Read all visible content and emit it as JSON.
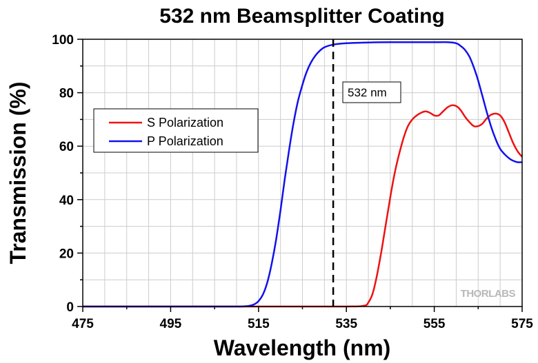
{
  "chart_data": {
    "type": "line",
    "title": "532 nm Beamsplitter Coating",
    "xlabel": "Wavelength (nm)",
    "ylabel": "Transmission (%)",
    "xlim": [
      475,
      575
    ],
    "ylim": [
      0,
      100
    ],
    "x_ticks": [
      475,
      495,
      515,
      535,
      555,
      575
    ],
    "x_tick_labels": [
      "475",
      "495",
      "515",
      "535",
      "555",
      "575"
    ],
    "y_ticks": [
      0,
      20,
      40,
      60,
      80,
      100
    ],
    "y_tick_labels": [
      "0",
      "20",
      "40",
      "60",
      "80",
      "100"
    ],
    "grid": true,
    "legend_position": "upper-left",
    "series": [
      {
        "name": "S Polarization",
        "color": "#ee1111",
        "x": [
          475,
          500,
          520,
          535,
          539,
          540,
          541,
          542,
          543,
          544,
          545,
          546,
          547,
          548,
          549,
          550,
          551,
          552,
          553,
          554,
          555,
          556,
          557,
          558,
          559,
          560,
          561,
          562,
          563,
          564,
          565,
          566,
          567,
          568,
          569,
          570,
          571,
          572,
          573,
          574,
          575
        ],
        "y": [
          0,
          0,
          0,
          0,
          0.3,
          1.5,
          5,
          12,
          21,
          31,
          41,
          50,
          57,
          63,
          67.5,
          70,
          71.5,
          72.5,
          73,
          72.5,
          71.5,
          71.5,
          73,
          74.5,
          75.3,
          75,
          73.5,
          71,
          69,
          67.5,
          67.5,
          68.5,
          70.5,
          71.8,
          72.2,
          71.5,
          69,
          65,
          61,
          58,
          56
        ]
      },
      {
        "name": "P Polarization",
        "color": "#1111ee",
        "x": [
          475,
          500,
          510,
          512,
          513,
          514,
          515,
          516,
          517,
          518,
          519,
          520,
          521,
          522,
          523,
          524,
          525,
          526,
          527,
          528,
          529,
          530,
          532,
          535,
          540,
          545,
          550,
          555,
          558,
          560,
          561,
          562,
          563,
          564,
          565,
          566,
          567,
          568,
          569,
          570,
          571,
          572,
          573,
          574,
          575
        ],
        "y": [
          0,
          0,
          0,
          0.1,
          0.3,
          0.8,
          2,
          4.5,
          9,
          16,
          25,
          36,
          48,
          59,
          69,
          77,
          83,
          88,
          91.5,
          94,
          95.8,
          97,
          98,
          98.5,
          98.8,
          98.9,
          98.9,
          98.9,
          98.9,
          98.5,
          97.5,
          96,
          93.5,
          89.5,
          84.5,
          78.5,
          72.5,
          67,
          62.5,
          59,
          57,
          55.5,
          54.5,
          54,
          54
        ]
      }
    ],
    "annotations": [
      {
        "type": "vertical-dashed-line",
        "x": 532,
        "label": "532 nm"
      }
    ],
    "watermark": "THORLABS"
  }
}
